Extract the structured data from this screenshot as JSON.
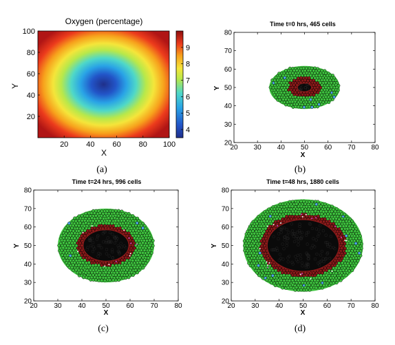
{
  "chart_data": [
    {
      "panel": "a",
      "type": "heatmap",
      "title": "Oxygen (percentage)",
      "xlabel": "X",
      "ylabel": "Y",
      "xlim": [
        0,
        100
      ],
      "ylim": [
        0,
        100
      ],
      "xticks": [
        "20",
        "40",
        "60",
        "80",
        "100"
      ],
      "yticks": [
        "20",
        "40",
        "60",
        "80",
        "100"
      ],
      "center": [
        50,
        50
      ],
      "colorbar": {
        "min": 3.5,
        "max": 10,
        "ticks": [
          "4",
          "5",
          "6",
          "7",
          "8",
          "9"
        ]
      },
      "caption": "(a)"
    },
    {
      "panel": "b",
      "type": "scatter",
      "title": "Time t=0 hrs, 465 cells",
      "xlabel": "X",
      "ylabel": "Y",
      "xlim": [
        20,
        80
      ],
      "ylim": [
        20,
        80
      ],
      "ticks": [
        "20",
        "30",
        "40",
        "50",
        "60",
        "70",
        "80"
      ],
      "center": [
        50,
        50
      ],
      "radii": {
        "outer": 15,
        "proliferating": 7,
        "necrotic": 3
      },
      "caption": "(b)"
    },
    {
      "panel": "c",
      "type": "scatter",
      "title": "Time t=24 hrs, 996 cells",
      "xlabel": "X",
      "ylabel": "Y",
      "xlim": [
        20,
        80
      ],
      "ylim": [
        20,
        80
      ],
      "ticks": [
        "20",
        "30",
        "40",
        "50",
        "60",
        "70",
        "80"
      ],
      "center": [
        50,
        50
      ],
      "radii": {
        "outer_x": 20,
        "outer_y": 20,
        "proliferating_x": 12,
        "proliferating_y": 11,
        "necrotic_x": 9.5,
        "necrotic_y": 8.5
      },
      "caption": "(c)"
    },
    {
      "panel": "d",
      "type": "scatter",
      "title": "Time t=48 hrs, 1880 cells",
      "xlabel": "X",
      "ylabel": "Y",
      "xlim": [
        20,
        80
      ],
      "ylim": [
        20,
        80
      ],
      "ticks": [
        "20",
        "30",
        "40",
        "50",
        "60",
        "70",
        "80"
      ],
      "center": [
        50,
        50
      ],
      "radii": {
        "outer": 25,
        "proliferating_x": 18,
        "proliferating_y": 17,
        "necrotic_x": 15,
        "necrotic_y": 14
      },
      "caption": "(d)"
    }
  ],
  "colors": {
    "viable": "#3ec43e",
    "proliferating": "#8b1a1a",
    "necrotic": "#0a0a0a",
    "cell_edge": "#000000"
  }
}
